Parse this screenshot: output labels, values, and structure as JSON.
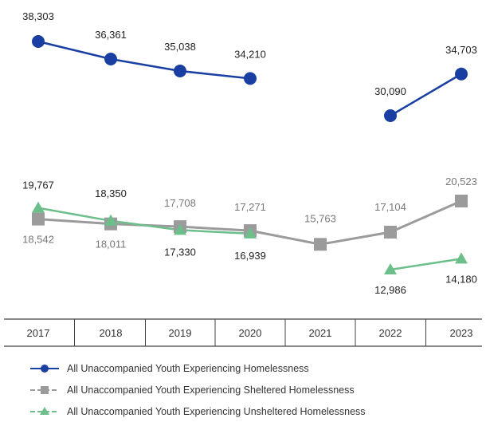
{
  "chart_data": {
    "type": "line",
    "categories": [
      "2017",
      "2018",
      "2019",
      "2020",
      "2021",
      "2022",
      "2023"
    ],
    "series": [
      {
        "name": "All Unaccompanied Youth Experiencing Homelessness",
        "values": [
          38303,
          36361,
          35038,
          34210,
          null,
          30090,
          34703
        ],
        "labels": [
          "38,303",
          "36,361",
          "35,038",
          "34,210",
          "",
          "30,090",
          "34,703"
        ],
        "color": "#1a3fa3",
        "marker": "circle"
      },
      {
        "name": "All Unaccompanied Youth Experiencing Sheltered Homelessness",
        "values": [
          18542,
          18011,
          17708,
          17271,
          15763,
          17104,
          20523
        ],
        "labels": [
          "18,542",
          "18,011",
          "17,708",
          "17,271",
          "15,763",
          "17,104",
          "20,523"
        ],
        "color": "#9b9b9b",
        "marker": "square"
      },
      {
        "name": "All Unaccompanied Youth Experiencing Unsheltered Homelessness",
        "values": [
          19767,
          18350,
          17330,
          16939,
          null,
          12986,
          14180
        ],
        "labels": [
          "19,767",
          "18,350",
          "17,330",
          "16,939",
          "",
          "12,986",
          "14,180"
        ],
        "color": "#6cbf8a",
        "marker": "triangle"
      }
    ],
    "legend_position": "bottom"
  }
}
